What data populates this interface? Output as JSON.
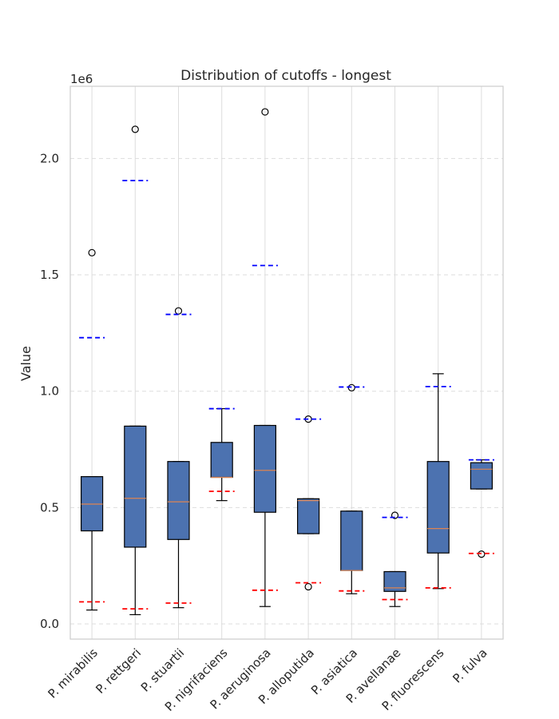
{
  "chart_data": {
    "type": "box",
    "title": "Distribution of cutoffs - longest",
    "ylabel": "Value",
    "xlabel": "",
    "y_offset_label": "1e6",
    "y_scale_factor": 1000000,
    "ylim": [
      -65000,
      2310000
    ],
    "yticks": [
      0.0,
      0.5,
      1.0,
      1.5,
      2.0
    ],
    "ytick_labels": [
      "0.0",
      "0.5",
      "1.0",
      "1.5",
      "2.0"
    ],
    "grid": true,
    "categories": [
      "P. mirabilis",
      "P. rettgeri",
      "P. stuartii",
      "P. nigrifaciens",
      "P. aeruginosa",
      "P. alloputida",
      "P. asiatica",
      "P. avellanae",
      "P. fluorescens",
      "P. fulva"
    ],
    "boxes": [
      {
        "whislo": 60000,
        "q1": 400000,
        "med": 515000,
        "q3": 633000,
        "whishi": 633000,
        "fliers": [
          1595000
        ],
        "upper_line": 1230000,
        "lower_line": 95000
      },
      {
        "whislo": 40000,
        "q1": 330000,
        "med": 540000,
        "q3": 850000,
        "whishi": 850000,
        "fliers": [
          2125000
        ],
        "upper_line": 1905000,
        "lower_line": 65000
      },
      {
        "whislo": 70000,
        "q1": 363000,
        "med": 525000,
        "q3": 698000,
        "whishi": 698000,
        "fliers": [
          1345000
        ],
        "upper_line": 1330000,
        "lower_line": 90000
      },
      {
        "whislo": 530000,
        "q1": 630000,
        "med": 630000,
        "q3": 780000,
        "whishi": 925000,
        "fliers": [],
        "upper_line": 925000,
        "lower_line": 570000
      },
      {
        "whislo": 75000,
        "q1": 480000,
        "med": 660000,
        "q3": 853000,
        "whishi": 853000,
        "fliers": [
          2200000
        ],
        "upper_line": 1540000,
        "lower_line": 145000
      },
      {
        "whislo": 388000,
        "q1": 388000,
        "med": 530000,
        "q3": 538000,
        "whishi": 538000,
        "fliers": [
          880000,
          160000
        ],
        "upper_line": 880000,
        "lower_line": 177000
      },
      {
        "whislo": 130000,
        "q1": 230000,
        "med": 230000,
        "q3": 485000,
        "whishi": 485000,
        "fliers": [
          1015000
        ],
        "upper_line": 1018000,
        "lower_line": 142000
      },
      {
        "whislo": 75000,
        "q1": 140000,
        "med": 155000,
        "q3": 225000,
        "whishi": 225000,
        "fliers": [
          467000
        ],
        "upper_line": 458000,
        "lower_line": 105000
      },
      {
        "whislo": 152000,
        "q1": 305000,
        "med": 410000,
        "q3": 698000,
        "whishi": 1075000,
        "fliers": [],
        "upper_line": 1020000,
        "lower_line": 155000
      },
      {
        "whislo": 580000,
        "q1": 580000,
        "med": 665000,
        "q3": 693000,
        "whishi": 705000,
        "fliers": [
          300000
        ],
        "upper_line": 705000,
        "lower_line": 303000
      }
    ],
    "colors": {
      "box_fill": "#4C72B0",
      "median": "#DD8452",
      "upper_line": "#0000ff",
      "lower_line": "#ff0000",
      "grid": "#dddddd",
      "spine": "#cccccc"
    }
  }
}
